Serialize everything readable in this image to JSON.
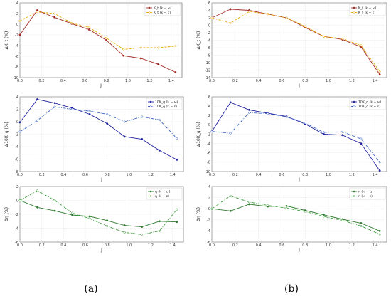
{
  "captions": [
    "(a)",
    "(b)"
  ],
  "chart_data": [
    {
      "type": "line",
      "xlabel": "J",
      "ylabel": "ΔK_t (%)",
      "xlim": [
        0,
        1.5
      ],
      "ylim": [
        -10,
        4
      ],
      "yticks": [
        -10,
        -8,
        -6,
        -4,
        -2,
        0,
        2,
        4
      ],
      "x": [
        0,
        0.16,
        0.32,
        0.48,
        0.64,
        0.8,
        0.96,
        1.12,
        1.28,
        1.44
      ],
      "series": [
        {
          "name": "K_t (k − ω)",
          "color": "#a32b25",
          "style": "solid",
          "values": [
            -2.0,
            2.6,
            1.3,
            0.1,
            -1.0,
            -3.0,
            -5.9,
            -6.4,
            -7.5,
            -9.0
          ]
        },
        {
          "name": "K_t (k − ε)",
          "color": "#e8a800",
          "style": "dash",
          "values": [
            0.6,
            2.3,
            2.0,
            0.2,
            -0.6,
            -2.6,
            -4.7,
            -4.4,
            -4.4,
            -4.1
          ]
        }
      ]
    },
    {
      "type": "line",
      "xlabel": "J",
      "ylabel": "ΔK_t (%)",
      "xlim": [
        0,
        1.5
      ],
      "ylim": [
        -14,
        6
      ],
      "yticks": [
        -14,
        -12,
        -10,
        -8,
        -6,
        -4,
        -2,
        0,
        2,
        4,
        6
      ],
      "x": [
        0,
        0.16,
        0.32,
        0.48,
        0.64,
        0.8,
        0.96,
        1.12,
        1.28,
        1.44
      ],
      "series": [
        {
          "name": "K_t (k − ω)",
          "color": "#a32b25",
          "style": "solid",
          "values": [
            2.0,
            4.3,
            4.0,
            3.0,
            2.0,
            -0.6,
            -3.0,
            -3.8,
            -5.8,
            -13.2
          ]
        },
        {
          "name": "K_t (k − ε)",
          "color": "#e8a800",
          "style": "dash",
          "values": [
            2.0,
            0.6,
            3.7,
            3.0,
            2.0,
            -0.3,
            -3.0,
            -3.6,
            -5.4,
            -12.4
          ]
        }
      ]
    },
    {
      "type": "line",
      "xlabel": "J",
      "ylabel": "Δ10K_q (%)",
      "xlim": [
        0,
        1.5
      ],
      "ylim": [
        -8,
        4
      ],
      "yticks": [
        -8,
        -6,
        -4,
        -2,
        0,
        2,
        4
      ],
      "x": [
        0,
        0.16,
        0.32,
        0.48,
        0.64,
        0.8,
        0.96,
        1.12,
        1.28,
        1.44
      ],
      "series": [
        {
          "name": "10K_q (k − ω)",
          "color": "#22229e",
          "style": "solid",
          "values": [
            -0.1,
            3.6,
            3.0,
            2.2,
            1.2,
            -0.3,
            -2.4,
            -2.8,
            -4.6,
            -6.1
          ]
        },
        {
          "name": "10K_q (k − ε)",
          "color": "#3a63c4",
          "style": "dashdot",
          "values": [
            -1.6,
            0.2,
            2.4,
            2.0,
            1.7,
            1.2,
            0.0,
            0.8,
            0.3,
            -2.7
          ]
        }
      ]
    },
    {
      "type": "line",
      "xlabel": "J",
      "ylabel": "Δ10K_q (%)",
      "xlim": [
        0,
        1.5
      ],
      "ylim": [
        -10,
        6
      ],
      "yticks": [
        -10,
        -8,
        -6,
        -4,
        -2,
        0,
        2,
        4,
        6
      ],
      "x": [
        0,
        0.16,
        0.32,
        0.48,
        0.64,
        0.8,
        0.96,
        1.12,
        1.28,
        1.44
      ],
      "series": [
        {
          "name": "10K_q (k − ω)",
          "color": "#22229e",
          "style": "solid",
          "values": [
            -1.4,
            4.8,
            3.2,
            2.5,
            1.8,
            0.2,
            -2.0,
            -2.2,
            -4.0,
            -9.8
          ]
        },
        {
          "name": "10K_q (k − ε)",
          "color": "#3a63c4",
          "style": "dashdot",
          "values": [
            -1.4,
            -1.8,
            2.6,
            2.4,
            1.7,
            0.4,
            -1.6,
            -1.5,
            -3.0,
            -8.0
          ]
        }
      ]
    },
    {
      "type": "line",
      "xlabel": "J",
      "ylabel": "Δη (%)",
      "xlim": [
        0,
        1.5
      ],
      "ylim": [
        -6,
        2
      ],
      "yticks": [
        -6,
        -4,
        -2,
        0,
        2
      ],
      "x": [
        0,
        0.16,
        0.32,
        0.48,
        0.64,
        0.8,
        0.96,
        1.12,
        1.28,
        1.44
      ],
      "series": [
        {
          "name": "η (k − ω)",
          "color": "#2e7a2e",
          "style": "solid",
          "values": [
            0.0,
            -1.0,
            -1.5,
            -2.1,
            -2.3,
            -2.9,
            -3.6,
            -3.8,
            -3.0,
            -3.1
          ]
        },
        {
          "name": "η (k − ε)",
          "color": "#3a9a3a",
          "style": "dashdot",
          "values": [
            0.0,
            1.4,
            0.0,
            -1.8,
            -2.6,
            -3.7,
            -4.6,
            -4.9,
            -4.4,
            -1.3
          ]
        }
      ]
    },
    {
      "type": "line",
      "xlabel": "J",
      "ylabel": "Δη (%)",
      "xlim": [
        0,
        1.5
      ],
      "ylim": [
        -6,
        4
      ],
      "yticks": [
        -6,
        -4,
        -2,
        0,
        2,
        4
      ],
      "x": [
        0,
        0.16,
        0.32,
        0.48,
        0.64,
        0.8,
        0.96,
        1.12,
        1.28,
        1.44
      ],
      "series": [
        {
          "name": "η (k − ω)",
          "color": "#2e7a2e",
          "style": "solid",
          "values": [
            0.0,
            -0.4,
            0.8,
            0.4,
            0.5,
            -0.3,
            -1.1,
            -1.9,
            -2.6,
            -4.0
          ]
        },
        {
          "name": "η (k − ε)",
          "color": "#3a9a3a",
          "style": "dashdot",
          "values": [
            0.0,
            2.3,
            1.2,
            0.6,
            0.1,
            -0.5,
            -1.4,
            -2.1,
            -3.1,
            -4.6
          ]
        }
      ]
    }
  ]
}
